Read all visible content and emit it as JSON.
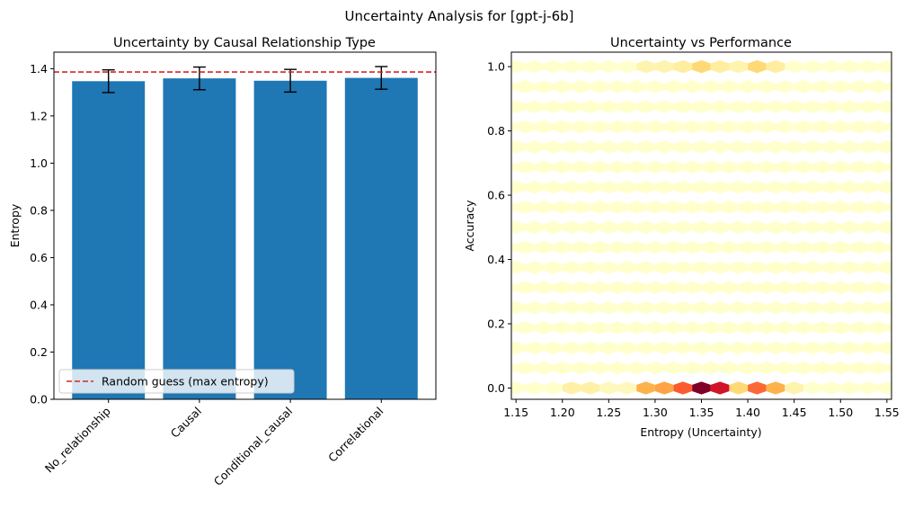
{
  "figure_title": "Uncertainty Analysis for [gpt-j-6b]",
  "chart_data": [
    {
      "type": "bar",
      "title": "Uncertainty by Causal Relationship Type",
      "xlabel": "",
      "ylabel": "Entropy",
      "categories": [
        "No_relationship",
        "Causal",
        "Conditional_causal",
        "Correlational"
      ],
      "values": [
        1.347,
        1.359,
        1.349,
        1.361
      ],
      "errors": [
        0.048,
        0.048,
        0.048,
        0.048
      ],
      "ylim": [
        0,
        1.47
      ],
      "yticks": [
        "0.0",
        "0.2",
        "0.4",
        "0.6",
        "0.8",
        "1.0",
        "1.2",
        "1.4"
      ],
      "bar_color": "#1f77b4",
      "reference_line": {
        "value": 1.386,
        "label": "Random guess (max entropy)",
        "color": "#d62728",
        "style": "dashed"
      },
      "legend_position": "lower-left"
    },
    {
      "type": "hexbin",
      "title": "Uncertainty vs Performance",
      "xlabel": "Entropy (Uncertainty)",
      "ylabel": "Accuracy",
      "xlim": [
        1.145,
        1.555
      ],
      "ylim": [
        -0.035,
        1.045
      ],
      "xticks": [
        "1.15",
        "1.20",
        "1.25",
        "1.30",
        "1.35",
        "1.40",
        "1.45",
        "1.50",
        "1.55"
      ],
      "yticks": [
        "0.0",
        "0.2",
        "0.4",
        "0.6",
        "0.8",
        "1.0"
      ],
      "colormap": "YlOrRd",
      "background_density_color": "#ffffcc",
      "high_density_cells": [
        {
          "entropy": 1.21,
          "accuracy": 0.0,
          "color": "#fff0a8"
        },
        {
          "entropy": 1.23,
          "accuracy": 0.0,
          "color": "#fff0a8"
        },
        {
          "entropy": 1.25,
          "accuracy": 0.0,
          "color": "#fff8bc"
        },
        {
          "entropy": 1.27,
          "accuracy": 0.0,
          "color": "#fff8bc"
        },
        {
          "entropy": 1.29,
          "accuracy": 0.0,
          "color": "#feb24c"
        },
        {
          "entropy": 1.31,
          "accuracy": 0.0,
          "color": "#fea446"
        },
        {
          "entropy": 1.33,
          "accuracy": 0.0,
          "color": "#fc5b32"
        },
        {
          "entropy": 1.35,
          "accuracy": 0.0,
          "color": "#800026"
        },
        {
          "entropy": 1.37,
          "accuracy": 0.0,
          "color": "#d0152a"
        },
        {
          "entropy": 1.39,
          "accuracy": 0.0,
          "color": "#fed976"
        },
        {
          "entropy": 1.41,
          "accuracy": 0.0,
          "color": "#fb6a36"
        },
        {
          "entropy": 1.43,
          "accuracy": 0.0,
          "color": "#feb24c"
        },
        {
          "entropy": 1.45,
          "accuracy": 0.0,
          "color": "#fff3b0"
        },
        {
          "entropy": 1.29,
          "accuracy": 1.0,
          "color": "#fff3b0"
        },
        {
          "entropy": 1.31,
          "accuracy": 1.0,
          "color": "#fff3b0"
        },
        {
          "entropy": 1.33,
          "accuracy": 1.0,
          "color": "#ffeda0"
        },
        {
          "entropy": 1.35,
          "accuracy": 1.0,
          "color": "#fed976"
        },
        {
          "entropy": 1.37,
          "accuracy": 1.0,
          "color": "#ffeda0"
        },
        {
          "entropy": 1.39,
          "accuracy": 1.0,
          "color": "#fff3b0"
        },
        {
          "entropy": 1.41,
          "accuracy": 1.0,
          "color": "#fed976"
        },
        {
          "entropy": 1.43,
          "accuracy": 1.0,
          "color": "#ffeda0"
        }
      ]
    }
  ]
}
